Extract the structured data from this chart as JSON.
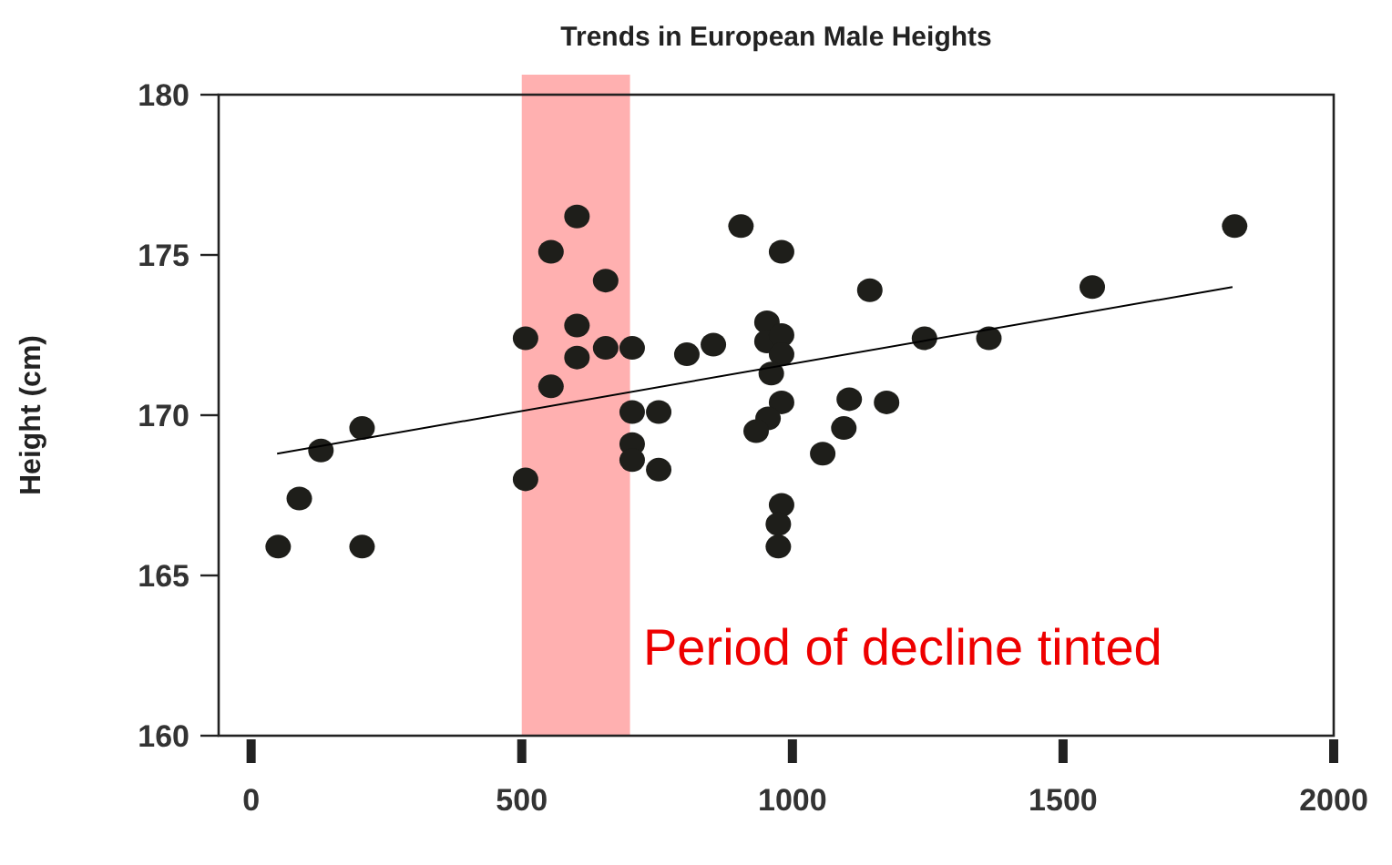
{
  "chart_data": {
    "type": "scatter",
    "title": "Trends in European Male Heights",
    "ylabel": "Height (cm)",
    "xlim": [
      -60,
      2000
    ],
    "xticks": [
      0,
      500,
      1000,
      1500,
      2000
    ],
    "ylim": [
      160,
      180
    ],
    "yticks": [
      160,
      165,
      170,
      175,
      180
    ],
    "marker": "circle",
    "grid": false,
    "annotations": [
      "Period of decline tinted"
    ],
    "bands": [
      {
        "axis": "x",
        "from": 500,
        "to": 700,
        "color": "#ffb0b0"
      }
    ],
    "series": [
      {
        "type": "scatter",
        "color": "#1e1e1a",
        "x": [
          50,
          89,
          129,
          205,
          205,
          507,
          507,
          554,
          602,
          554,
          602,
          602,
          655,
          655,
          704,
          704,
          704,
          704,
          753,
          753,
          805,
          854,
          905,
          980,
          953,
          953,
          980,
          980,
          961,
          980,
          955,
          933,
          980,
          974,
          974,
          1143,
          1105,
          1174,
          1095,
          1056,
          1244,
          1363,
          1554,
          1817
        ],
        "values": [
          165.9,
          167.4,
          168.9,
          169.6,
          165.9,
          172.4,
          168.0,
          175.1,
          176.2,
          170.9,
          172.8,
          171.8,
          174.2,
          172.1,
          172.1,
          170.1,
          169.1,
          168.6,
          170.1,
          168.3,
          171.9,
          172.2,
          175.9,
          175.1,
          172.9,
          172.3,
          172.5,
          171.9,
          171.3,
          170.4,
          169.9,
          169.5,
          167.2,
          166.6,
          165.9,
          173.9,
          170.5,
          170.4,
          169.6,
          168.8,
          172.4,
          172.4,
          174.0,
          175.9
        ]
      },
      {
        "type": "line",
        "color": "#000000",
        "x": [
          48,
          1813
        ],
        "values": [
          168.8,
          174.0
        ],
        "marker": "none"
      }
    ]
  }
}
